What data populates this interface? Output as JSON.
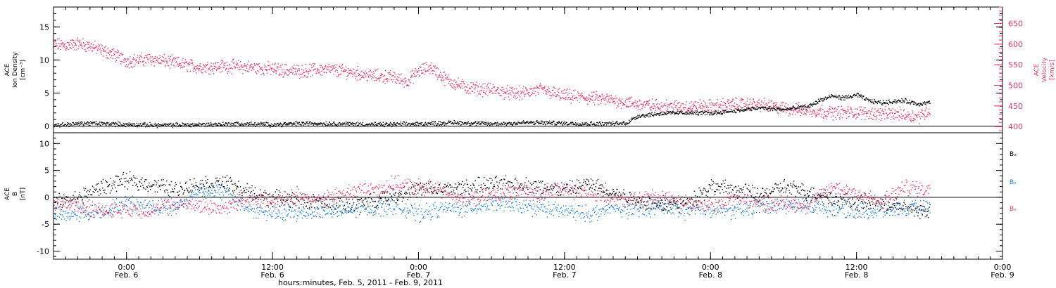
{
  "figure": {
    "xaxis_title": "hours:minutes, Feb. 5, 2011 - Feb. 9, 2011",
    "xticks": [
      {
        "hours": 6,
        "time": "0:00",
        "date": "Feb. 6"
      },
      {
        "hours": 18,
        "time": "12:00",
        "date": "Feb. 6"
      },
      {
        "hours": 30,
        "time": "0:00",
        "date": "Feb. 7"
      },
      {
        "hours": 42,
        "time": "12:00",
        "date": "Feb. 7"
      },
      {
        "hours": 54,
        "time": "0:00",
        "date": "Feb. 8"
      },
      {
        "hours": 66,
        "time": "12:00",
        "date": "Feb. 8"
      },
      {
        "hours": 78,
        "time": "0:00",
        "date": "Feb. 9"
      }
    ],
    "xlim_hours": [
      0,
      78
    ]
  },
  "colors": {
    "density": "#000000",
    "velocity": "#e8386a",
    "bx": "#000000",
    "by": "#1a7fe0",
    "bz": "#e8386a"
  },
  "chart_data": [
    {
      "type": "scatter",
      "ylabel_lines": [
        "ACE",
        "Ion Density",
        "[cm⁻³]"
      ],
      "ylabel2_lines": [
        "ACE",
        "Velocity",
        "[km/s]"
      ],
      "ylim": [
        -1,
        18
      ],
      "yticks": [
        0,
        5,
        10,
        15
      ],
      "ylim2": [
        385,
        690
      ],
      "yticks2": [
        400,
        450,
        500,
        550,
        600,
        650
      ],
      "series": [
        {
          "name": "density",
          "axis": "left",
          "x": [
            0,
            3,
            6,
            9,
            12,
            15,
            18,
            21,
            24,
            27,
            30,
            33,
            36,
            39,
            42,
            45,
            47,
            48,
            50,
            52,
            54,
            56,
            58,
            60,
            62,
            63,
            64,
            65,
            66,
            67,
            68,
            69,
            70,
            71,
            72
          ],
          "y": [
            0.2,
            0.5,
            0.3,
            0.2,
            0.3,
            0.4,
            0.3,
            0.5,
            0.4,
            0.3,
            0.4,
            0.6,
            0.4,
            0.6,
            0.5,
            0.4,
            0.5,
            1.6,
            2.0,
            2.1,
            2.0,
            2.4,
            2.8,
            2.6,
            3.0,
            4.0,
            4.6,
            4.3,
            4.8,
            3.9,
            3.6,
            3.8,
            3.9,
            3.4,
            3.6
          ]
        },
        {
          "name": "velocity",
          "axis": "right",
          "x": [
            0,
            1,
            2,
            3,
            4,
            5,
            6,
            8,
            10,
            12,
            14,
            16,
            18,
            20,
            22,
            24,
            26,
            28,
            29,
            30,
            31,
            32,
            33,
            34,
            36,
            38,
            40,
            42,
            44,
            46,
            48,
            50,
            52,
            54,
            56,
            58,
            60,
            62,
            64,
            66,
            68,
            70,
            71,
            72
          ],
          "y": [
            600,
            598,
            602,
            596,
            585,
            575,
            560,
            565,
            555,
            545,
            548,
            545,
            540,
            535,
            540,
            535,
            525,
            520,
            510,
            535,
            545,
            520,
            505,
            495,
            490,
            480,
            490,
            475,
            470,
            465,
            455,
            450,
            450,
            450,
            455,
            455,
            445,
            440,
            435,
            435,
            432,
            430,
            425,
            440
          ]
        }
      ]
    },
    {
      "type": "scatter",
      "ylabel_lines": [
        "ACE",
        "B",
        "[nT]"
      ],
      "ylim": [
        -11.5,
        12
      ],
      "yticks": [
        -10,
        -5,
        0,
        5,
        10
      ],
      "legend": [
        "Bₓ",
        "Bᵧ",
        "Bₔ"
      ],
      "legend_placement": "right",
      "series": [
        {
          "name": "Bx",
          "x": [
            0,
            2,
            4,
            6,
            8,
            10,
            12,
            14,
            16,
            18,
            20,
            22,
            24,
            26,
            28,
            30,
            32,
            34,
            36,
            38,
            40,
            42,
            44,
            46,
            48,
            50,
            52,
            54,
            56,
            58,
            60,
            62,
            64,
            66,
            68,
            70,
            72
          ],
          "y": [
            -1,
            0,
            2,
            3.2,
            2.5,
            1.5,
            2.5,
            2.8,
            1.0,
            0.0,
            -0.5,
            -1.0,
            -1.5,
            -0.5,
            0.5,
            1.5,
            1.5,
            2.0,
            2.5,
            2.5,
            2.0,
            1.5,
            2.5,
            1.0,
            -0.5,
            -1.5,
            -1.0,
            2.0,
            1.5,
            0.5,
            2.0,
            1.0,
            0.0,
            -1.0,
            -1.0,
            -2.0,
            -2.5
          ]
        },
        {
          "name": "By",
          "x": [
            0,
            2,
            4,
            6,
            8,
            10,
            12,
            14,
            16,
            18,
            20,
            22,
            24,
            26,
            28,
            30,
            32,
            34,
            36,
            38,
            40,
            42,
            44,
            46,
            48,
            50,
            52,
            54,
            56,
            58,
            60,
            62,
            64,
            66,
            68,
            70,
            72
          ],
          "y": [
            -3.5,
            -3,
            -2.5,
            -1,
            -1.5,
            -2,
            1.5,
            1.0,
            -2.0,
            -3.0,
            -3.0,
            -2.5,
            -2.5,
            -2.0,
            -1.5,
            -3.0,
            -2.0,
            -2.0,
            -1.0,
            -1.5,
            -2.0,
            -2.5,
            -3.0,
            -2.0,
            -2.5,
            -1.5,
            -2.5,
            -2.0,
            -2.5,
            -1.5,
            -1.5,
            -1.5,
            -2.0,
            -2.5,
            -2.5,
            -2.0,
            -2.0
          ]
        },
        {
          "name": "Bz",
          "x": [
            0,
            2,
            4,
            6,
            8,
            10,
            12,
            14,
            16,
            18,
            20,
            22,
            24,
            26,
            28,
            30,
            32,
            34,
            36,
            38,
            40,
            42,
            44,
            46,
            48,
            50,
            52,
            54,
            56,
            58,
            60,
            62,
            64,
            66,
            68,
            70,
            72
          ],
          "y": [
            -1,
            -1.5,
            -2.5,
            -2,
            -2.5,
            -1,
            -1.5,
            -2.0,
            0.0,
            -1.0,
            0.5,
            -0.5,
            1.0,
            1.5,
            2.5,
            2.0,
            1.5,
            -0.5,
            0.5,
            1.0,
            1.0,
            1.5,
            1.0,
            0.0,
            -0.5,
            0.5,
            -1.0,
            -1.5,
            0.0,
            -1.0,
            -1.0,
            -1.5,
            2.0,
            1.0,
            -1.0,
            2.0,
            1.5
          ]
        }
      ]
    }
  ]
}
